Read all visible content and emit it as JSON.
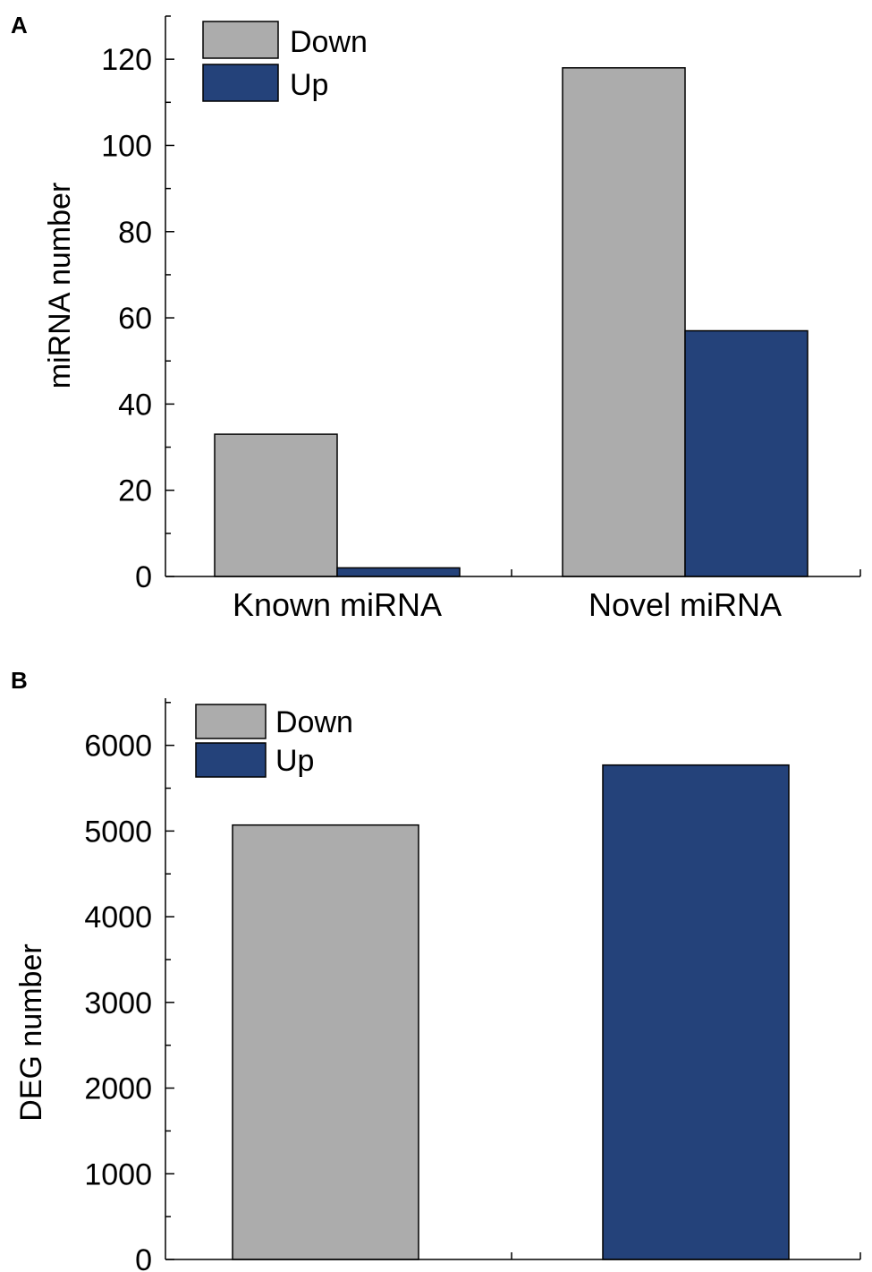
{
  "colors": {
    "down": "#acacac",
    "up": "#24427a"
  },
  "chart_data": [
    {
      "panel": "A",
      "type": "bar",
      "ylabel": "miRNA number",
      "xlabel": "",
      "ylim": [
        0,
        130
      ],
      "yticks": [
        0,
        20,
        40,
        60,
        80,
        100,
        120
      ],
      "yticks_labels": [
        "0",
        "20",
        "40",
        "60",
        "80",
        "100",
        "120"
      ],
      "categories": [
        "Known miRNA",
        "Novel miRNA"
      ],
      "series": [
        {
          "name": "Down",
          "color_key": "down",
          "values": [
            33,
            118
          ]
        },
        {
          "name": "Up",
          "color_key": "up",
          "values": [
            2,
            57
          ]
        }
      ],
      "legend": "top-left",
      "grid": false
    },
    {
      "panel": "B",
      "type": "bar",
      "ylabel": "DEG number",
      "xlabel": "",
      "ylim": [
        0,
        6550
      ],
      "yticks": [
        0,
        1000,
        2000,
        3000,
        4000,
        5000,
        6000
      ],
      "yticks_labels": [
        "0",
        "1000",
        "2000",
        "3000",
        "4000",
        "5000",
        "6000"
      ],
      "categories": [
        ""
      ],
      "series": [
        {
          "name": "Down",
          "color_key": "down",
          "values": [
            5070
          ]
        },
        {
          "name": "Up",
          "color_key": "up",
          "values": [
            5770
          ]
        }
      ],
      "legend": "top-left",
      "grid": false
    }
  ]
}
